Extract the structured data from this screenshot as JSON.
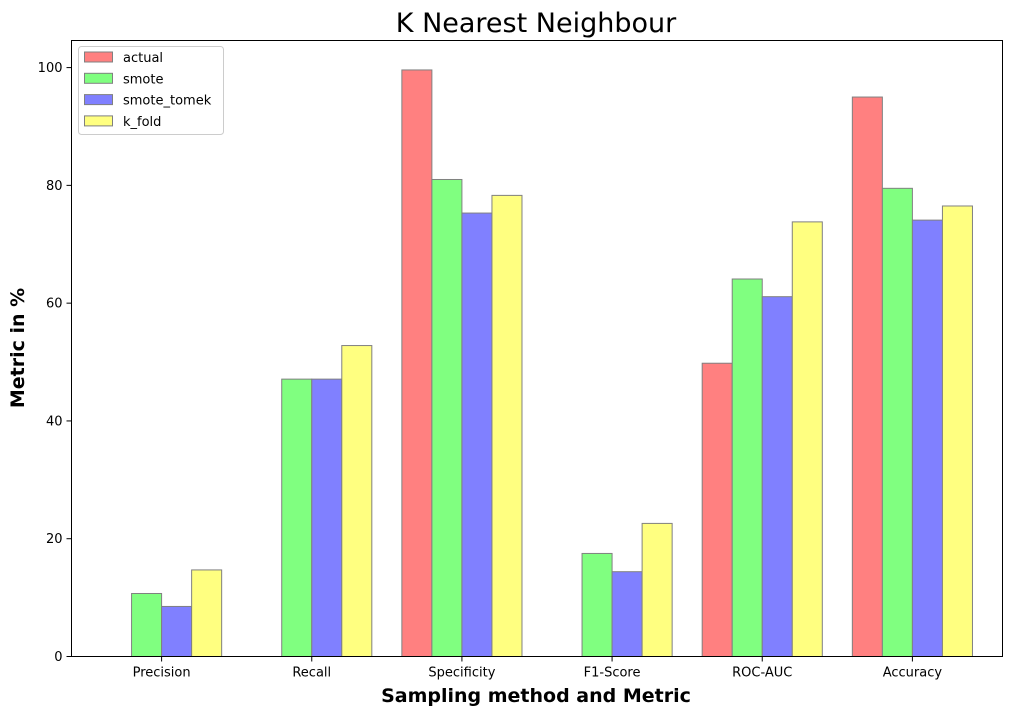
{
  "chart_data": {
    "type": "bar",
    "title": "K Nearest Neighbour",
    "xlabel": "Sampling method and Metric",
    "ylabel": "Metric in %",
    "categories": [
      "Precision",
      "Recall",
      "Specificity",
      "F1-Score",
      "ROC-AUC",
      "Accuracy"
    ],
    "series": [
      {
        "name": "actual",
        "color": "#ff8080",
        "values": [
          0,
          0,
          99.6,
          0,
          49.8,
          95.0
        ]
      },
      {
        "name": "smote",
        "color": "#80ff80",
        "values": [
          10.7,
          47.1,
          81.0,
          17.5,
          64.1,
          79.5
        ]
      },
      {
        "name": "smote_tomek",
        "color": "#8080ff",
        "values": [
          8.5,
          47.1,
          75.3,
          14.4,
          61.1,
          74.1
        ]
      },
      {
        "name": "k_fold",
        "color": "#ffff80",
        "values": [
          14.7,
          52.8,
          78.3,
          22.6,
          73.8,
          76.5
        ]
      }
    ],
    "yticks": [
      0,
      20,
      40,
      60,
      80,
      100
    ],
    "ylim": [
      0,
      104.6
    ],
    "legend_position": "top-left",
    "grid": false,
    "bar_edge_color": "#808080"
  }
}
